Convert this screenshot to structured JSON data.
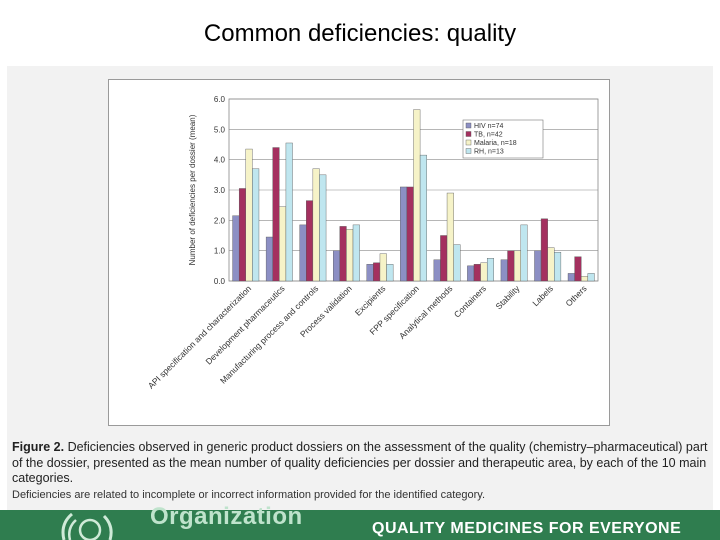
{
  "slide": {
    "title": "Common deficiencies: quality"
  },
  "caption": {
    "figure_label": "Figure 2.",
    "text": "Deficiencies observed in generic product dossiers on the assessment of the quality (chemistry–pharmaceutical) part of the dossier, presented as the mean number of quality deficiencies per dossier and therapeutic area, by each of the 10 main categories.",
    "note": "Deficiencies are related to incomplete or incorrect information provided for the identified category."
  },
  "footer": {
    "organization": "Organization",
    "tagline": "QUALITY MEDICINES FOR EVERYONE"
  },
  "chart_data": {
    "type": "bar",
    "ylabel": "Number of deficiencies per dossier (mean)",
    "ylim": [
      0,
      6
    ],
    "yticks": [
      "0.0",
      "1.0",
      "2.0",
      "3.0",
      "4.0",
      "5.0",
      "6.0"
    ],
    "grid": true,
    "legend_position": "right",
    "categories": [
      "API specification and characterization",
      "Development pharmaceutics",
      "Manufacturing process and controls",
      "Process validation",
      "Excipients",
      "FPP specification",
      "Analytical methods",
      "Containers",
      "Stability",
      "Labels",
      "Others"
    ],
    "series": [
      {
        "name": "HIV n=74",
        "color": "#8c8fc4",
        "values": [
          2.15,
          1.45,
          1.85,
          1.0,
          0.55,
          3.1,
          0.7,
          0.5,
          0.7,
          1.0,
          0.25
        ]
      },
      {
        "name": "TB, n=42",
        "color": "#a4305f",
        "values": [
          3.05,
          4.4,
          2.65,
          1.8,
          0.6,
          3.1,
          1.5,
          0.55,
          1.0,
          2.05,
          0.8
        ]
      },
      {
        "name": "Malaria, n=18",
        "color": "#f6f3c8",
        "values": [
          4.35,
          2.45,
          3.7,
          1.7,
          0.9,
          5.65,
          2.9,
          0.6,
          1.0,
          1.1,
          0.15
        ]
      },
      {
        "name": "RH, n=13",
        "color": "#bfe6ef",
        "values": [
          3.7,
          4.55,
          3.5,
          1.85,
          0.55,
          4.15,
          1.2,
          0.75,
          1.85,
          0.95,
          0.25
        ]
      }
    ]
  }
}
